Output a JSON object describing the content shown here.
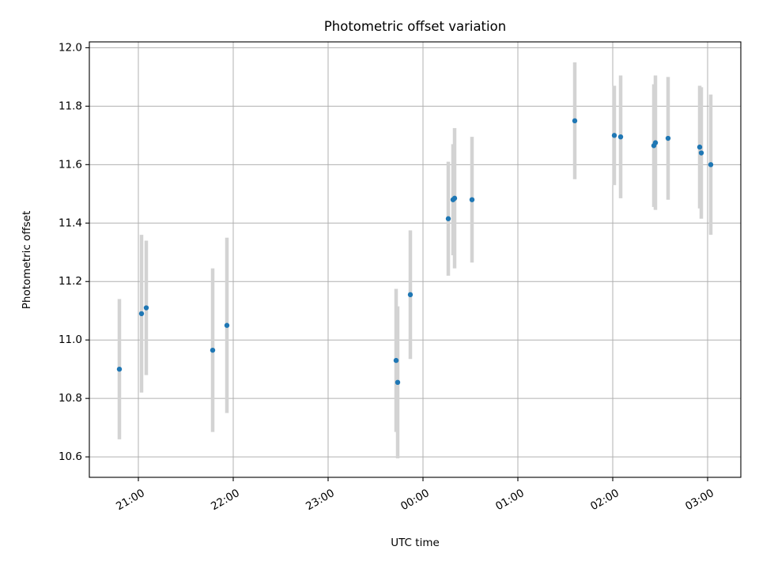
{
  "chart_data": {
    "type": "scatter",
    "title": "Photometric offset variation",
    "xlabel": "UTC time",
    "ylabel": "Photometric offset",
    "xlim": [
      "20:29",
      "03:21"
    ],
    "ylim": [
      10.53,
      12.02
    ],
    "x_ticks": [
      "21:00",
      "22:00",
      "23:00",
      "00:00",
      "01:00",
      "02:00",
      "03:00"
    ],
    "y_ticks": [
      10.6,
      10.8,
      11.0,
      11.2,
      11.4,
      11.6,
      11.8,
      12.0
    ],
    "grid": true,
    "colors": {
      "points": "#1f77b4",
      "errorbars": "#d3d3d3"
    },
    "series": [
      {
        "points": [
          {
            "t": "20:48",
            "y": 10.9,
            "err": 0.24
          },
          {
            "t": "21:02",
            "y": 11.09,
            "err": 0.27
          },
          {
            "t": "21:05",
            "y": 11.11,
            "err": 0.23
          },
          {
            "t": "21:47",
            "y": 10.965,
            "err": 0.28
          },
          {
            "t": "21:56",
            "y": 11.05,
            "err": 0.3
          },
          {
            "t": "23:43",
            "y": 10.93,
            "err": 0.245
          },
          {
            "t": "23:44",
            "y": 10.855,
            "err": 0.26
          },
          {
            "t": "23:52",
            "y": 11.155,
            "err": 0.22
          },
          {
            "t": "00:16",
            "y": 11.415,
            "err": 0.195
          },
          {
            "t": "00:19",
            "y": 11.48,
            "err": 0.19
          },
          {
            "t": "00:20",
            "y": 11.485,
            "err": 0.24
          },
          {
            "t": "00:31",
            "y": 11.48,
            "err": 0.215
          },
          {
            "t": "01:36",
            "y": 11.75,
            "err": 0.2
          },
          {
            "t": "02:01",
            "y": 11.7,
            "err": 0.17
          },
          {
            "t": "02:05",
            "y": 11.695,
            "err": 0.21
          },
          {
            "t": "02:26",
            "y": 11.665,
            "err": 0.21
          },
          {
            "t": "02:27",
            "y": 11.675,
            "err": 0.23
          },
          {
            "t": "02:35",
            "y": 11.69,
            "err": 0.21
          },
          {
            "t": "02:55",
            "y": 11.66,
            "err": 0.21
          },
          {
            "t": "02:56",
            "y": 11.64,
            "err": 0.225
          },
          {
            "t": "03:02",
            "y": 11.6,
            "err": 0.24
          }
        ]
      }
    ]
  }
}
